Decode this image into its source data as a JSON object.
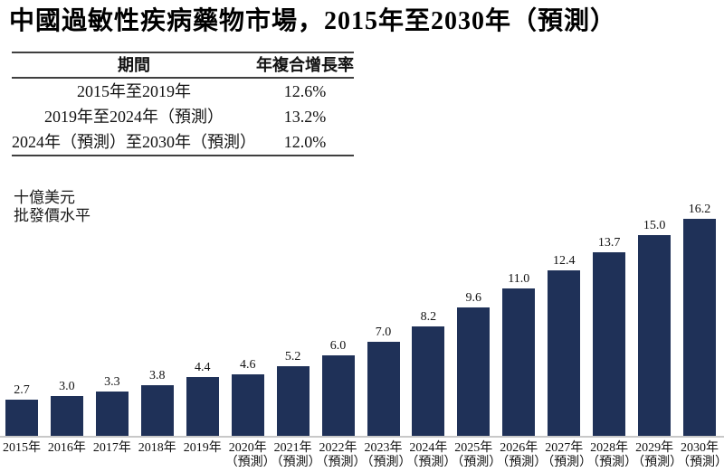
{
  "title": "中國過敏性疾病藥物市場，2015年至2030年（預測）",
  "cagr_table": {
    "headers": [
      "期間",
      "年複合增長率"
    ],
    "rows": [
      {
        "period": "2015年至2019年",
        "cagr": "12.6%"
      },
      {
        "period": "2019年至2024年（預測）",
        "cagr": "13.2%"
      },
      {
        "period": "2024年（預測）至2030年（預測）",
        "cagr": "12.0%"
      }
    ]
  },
  "y_axis_caption": {
    "line1": "十億美元",
    "line2": "批發價水平"
  },
  "chart_data": {
    "type": "bar",
    "title": "中國過敏性疾病藥物市場，2015年至2030年（預測）",
    "ylabel": "十億美元（批發價水平）",
    "xlabel": "",
    "categories": [
      "2015年",
      "2016年",
      "2017年",
      "2018年",
      "2019年",
      "2020年（預測）",
      "2021年（預測）",
      "2022年（預測）",
      "2023年（預測）",
      "2024年（預測）",
      "2025年（預測）",
      "2026年（預測）",
      "2027年（預測）",
      "2028年（預測）",
      "2029年（預測）",
      "2030年（預測）"
    ],
    "values": [
      2.7,
      3.0,
      3.3,
      3.8,
      4.4,
      4.6,
      5.2,
      6.0,
      7.0,
      8.2,
      9.6,
      11.0,
      12.4,
      13.7,
      15.0,
      16.2
    ],
    "value_label_decimals": 1,
    "forecast_note": "（預測）",
    "ylim": [
      0,
      16.2
    ],
    "grid": "off",
    "legend": "none",
    "bar_color": "#1F3158",
    "baseline_color": "#C8C8C8"
  }
}
